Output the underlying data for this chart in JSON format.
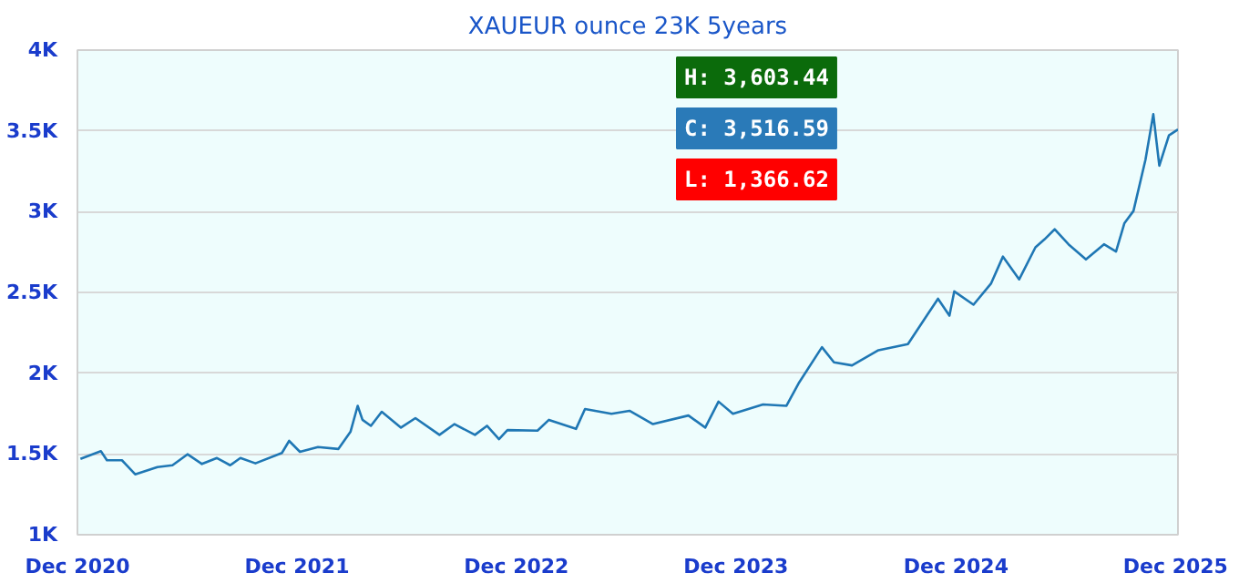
{
  "chart_data": {
    "type": "line",
    "title": "XAUEUR ounce 23K 5years",
    "x": [
      "2020-12-06",
      "2021-01-09",
      "2021-01-19",
      "2021-02-13",
      "2021-03-07",
      "2021-04-13",
      "2021-05-08",
      "2021-06-02",
      "2021-06-26",
      "2021-07-21",
      "2021-08-12",
      "2021-08-29",
      "2021-09-23",
      "2021-11-06",
      "2021-11-18",
      "2021-12-06",
      "2022-01-05",
      "2022-02-08",
      "2022-02-28",
      "2022-03-12",
      "2022-03-20",
      "2022-04-03",
      "2022-04-21",
      "2022-05-23",
      "2022-06-16",
      "2022-07-26",
      "2022-08-20",
      "2022-09-23",
      "2022-10-13",
      "2022-11-02",
      "2022-11-16",
      "2023-01-05",
      "2023-01-24",
      "2023-03-10",
      "2023-03-25",
      "2023-05-08",
      "2023-06-07",
      "2023-07-16",
      "2023-09-13",
      "2023-10-11",
      "2023-11-02",
      "2023-11-26",
      "2024-01-15",
      "2024-02-23",
      "2024-03-14",
      "2024-04-22",
      "2024-05-12",
      "2024-06-11",
      "2024-07-25",
      "2024-09-12",
      "2024-11-01",
      "2024-11-20",
      "2024-11-28",
      "2024-12-30",
      "2025-01-28",
      "2025-02-17",
      "2025-03-16",
      "2025-04-12",
      "2025-04-27",
      "2025-05-14",
      "2025-06-06",
      "2025-07-05",
      "2025-08-04",
      "2025-08-24",
      "2025-09-07",
      "2025-09-22",
      "2025-10-12",
      "2025-10-25",
      "2025-11-04",
      "2025-11-20",
      "2025-12-05"
    ],
    "series": [
      {
        "color": "#1f77b4",
        "values": [
          1469,
          1517,
          1461,
          1461,
          1374,
          1419,
          1430,
          1498,
          1438,
          1475,
          1430,
          1475,
          1442,
          1506,
          1581,
          1513,
          1543,
          1531,
          1637,
          1798,
          1711,
          1674,
          1761,
          1663,
          1722,
          1618,
          1685,
          1618,
          1674,
          1592,
          1648,
          1644,
          1711,
          1655,
          1778,
          1749,
          1767,
          1685,
          1738,
          1663,
          1824,
          1749,
          1806,
          1798,
          1936,
          2161,
          2067,
          2048,
          2142,
          2180,
          2461,
          2356,
          2506,
          2424,
          2554,
          2722,
          2581,
          2779,
          2828,
          2891,
          2798,
          2704,
          2798,
          2753,
          2929,
          3004,
          3322,
          3603,
          3284,
          3472,
          3509
        ]
      }
    ],
    "xlim": [
      "2020-12-01",
      "2025-12-05"
    ],
    "xticks": [
      {
        "value": "2020-12-01",
        "label": "Dec 2020"
      },
      {
        "value": "2021-12-01",
        "label": "Dec 2021"
      },
      {
        "value": "2022-12-01",
        "label": "Dec 2022"
      },
      {
        "value": "2023-12-01",
        "label": "Dec 2023"
      },
      {
        "value": "2024-12-01",
        "label": "Dec 2024"
      },
      {
        "value": "2025-12-01",
        "label": "Dec 2025"
      }
    ],
    "ylim": [
      1000,
      4000
    ],
    "yticks": [
      {
        "value": 1000,
        "label": "1K"
      },
      {
        "value": 1500,
        "label": "1.5K"
      },
      {
        "value": 2000,
        "label": "2K"
      },
      {
        "value": 2500,
        "label": "2.5K"
      },
      {
        "value": 3000,
        "label": "3K"
      },
      {
        "value": 3500,
        "label": "3.5K"
      },
      {
        "value": 4000,
        "label": "4K"
      }
    ],
    "grid": "y",
    "marker": "none",
    "line_style": "solid",
    "annotations": [
      "H: 3,603.44",
      "C: 3,516.59",
      "L: 1,366.62"
    ]
  }
}
